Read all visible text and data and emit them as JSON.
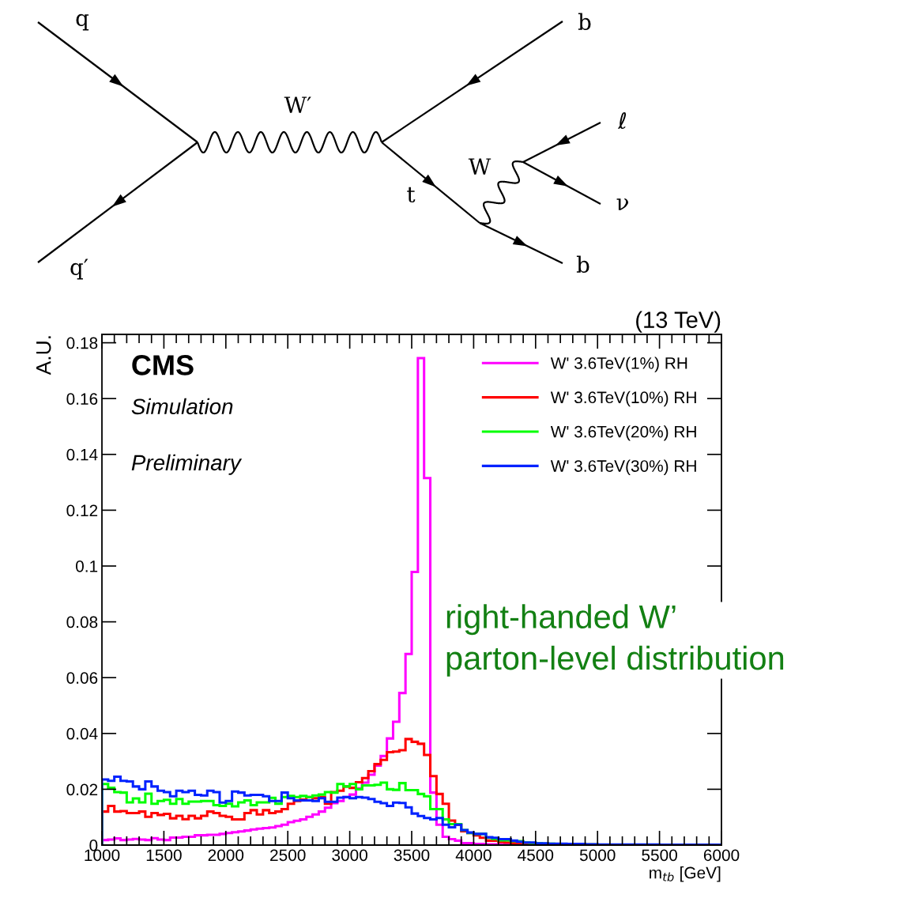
{
  "chart_data": {
    "type": "histogram",
    "title": "(13 TeV)",
    "xlabel": "m$_{tb}$ [GeV]",
    "ylabel": "A.U.",
    "bins": [
      1000,
      1050,
      1100,
      1150,
      1200,
      1250,
      1300,
      1350,
      1400,
      1450,
      1500,
      1550,
      1600,
      1650,
      1700,
      1750,
      1800,
      1850,
      1900,
      1950,
      2000,
      2050,
      2100,
      2150,
      2200,
      2250,
      2300,
      2350,
      2400,
      2450,
      2500,
      2550,
      2600,
      2650,
      2700,
      2750,
      2800,
      2850,
      2900,
      2950,
      3000,
      3050,
      3100,
      3150,
      3200,
      3250,
      3300,
      3350,
      3400,
      3450,
      3500,
      3550,
      3600,
      3650,
      3700,
      3750,
      3800,
      3850,
      3900,
      3950,
      4000,
      4050,
      4100,
      4150,
      4200,
      4250,
      4300,
      4350,
      4400,
      4450,
      4500,
      4550,
      4600,
      4650,
      4700,
      4750,
      4800,
      4850,
      4900,
      4950,
      5000,
      5050,
      5100,
      5150,
      5200,
      5250,
      5300,
      5350,
      5400,
      5450,
      5500,
      5550,
      5600,
      5650,
      5700,
      5750,
      5800,
      5850,
      5900,
      5950,
      6000
    ],
    "series": [
      {
        "name": "W' 3.6TeV(1%) RH",
        "color": "#ff00ff",
        "values": [
          0.0018,
          0.002,
          0.0024,
          0.0018,
          0.002,
          0.0022,
          0.002,
          0.0018,
          0.0025,
          0.002,
          0.0018,
          0.0027,
          0.0027,
          0.003,
          0.003,
          0.0035,
          0.0035,
          0.0037,
          0.0037,
          0.004,
          0.0043,
          0.0046,
          0.0049,
          0.0052,
          0.0056,
          0.0059,
          0.0061,
          0.0063,
          0.0068,
          0.0073,
          0.0082,
          0.0087,
          0.0092,
          0.0101,
          0.011,
          0.012,
          0.0134,
          0.015,
          0.0158,
          0.0172,
          0.0181,
          0.0203,
          0.0224,
          0.0252,
          0.0285,
          0.0319,
          0.0382,
          0.0442,
          0.0545,
          0.0685,
          0.0979,
          0.1745,
          0.1315,
          0.0188,
          0.0073,
          0.003,
          0.0021,
          0.0016,
          0.0007,
          0.0007,
          0.0004,
          0.0004,
          0.0003,
          0.0003,
          0.0002,
          0.0002,
          0.0002,
          0.0002,
          0.0001,
          0.0001,
          0.0001,
          0.0001,
          0.0001,
          0.0001,
          0.0001,
          0.0001,
          0.0001,
          0.0001,
          0.0001,
          0.0001,
          0,
          0,
          0,
          0,
          0,
          0,
          0,
          0,
          0,
          0,
          0,
          0,
          0,
          0,
          0,
          0,
          0,
          0,
          0,
          0
        ]
      },
      {
        "name": "W' 3.6TeV(10%) RH",
        "color": "#ff0000",
        "values": [
          0.012,
          0.014,
          0.012,
          0.0122,
          0.0115,
          0.0115,
          0.012,
          0.0101,
          0.0115,
          0.0108,
          0.0112,
          0.0096,
          0.0105,
          0.0093,
          0.0105,
          0.0096,
          0.0105,
          0.012,
          0.0115,
          0.0105,
          0.0101,
          0.0092,
          0.0092,
          0.0115,
          0.0125,
          0.011,
          0.0125,
          0.0115,
          0.012,
          0.0129,
          0.0148,
          0.0158,
          0.0163,
          0.0172,
          0.0168,
          0.0172,
          0.0148,
          0.019,
          0.0195,
          0.021,
          0.0205,
          0.0225,
          0.024,
          0.0265,
          0.029,
          0.0305,
          0.0333,
          0.0335,
          0.034,
          0.038,
          0.037,
          0.0363,
          0.0323,
          0.0247,
          0.0183,
          0.0148,
          0.0088,
          0.0073,
          0.005,
          0.0043,
          0.0035,
          0.0026,
          0.0016,
          0.0016,
          0.0011,
          0.0009,
          0.0007,
          0.0007,
          0.0006,
          0.0005,
          0.0004,
          0.0004,
          0.0003,
          0.0003,
          0.0003,
          0.0002,
          0.0002,
          0.0002,
          0.0002,
          0.0002,
          0.0001,
          0.0001,
          0.0001,
          0.0001,
          0.0001,
          0.0001,
          0.0001,
          0.0001,
          0.0001,
          0.0001,
          0.0001,
          0.0001,
          0.0001,
          0.0001,
          0.0001,
          0.0001,
          0.0001,
          0.0001,
          0.0001,
          0.0001
        ]
      },
      {
        "name": "W' 3.6TeV(20%) RH",
        "color": "#00ff00",
        "values": [
          0.0219,
          0.0205,
          0.019,
          0.0188,
          0.0153,
          0.0167,
          0.0153,
          0.0184,
          0.0148,
          0.0158,
          0.0162,
          0.0148,
          0.0165,
          0.0148,
          0.0156,
          0.0156,
          0.0158,
          0.0158,
          0.0143,
          0.014,
          0.0148,
          0.0139,
          0.0153,
          0.016,
          0.0143,
          0.0153,
          0.0153,
          0.0169,
          0.0148,
          0.0172,
          0.0176,
          0.0172,
          0.0176,
          0.0172,
          0.0178,
          0.0181,
          0.019,
          0.0188,
          0.0219,
          0.021,
          0.0219,
          0.02,
          0.0214,
          0.0214,
          0.0216,
          0.0224,
          0.02,
          0.0198,
          0.0222,
          0.0197,
          0.0197,
          0.0183,
          0.0175,
          0.0129,
          0.0129,
          0.0092,
          0.0075,
          0.0075,
          0.0054,
          0.0043,
          0.004,
          0.004,
          0.0026,
          0.0022,
          0.0017,
          0.0017,
          0.0014,
          0.0014,
          0.0009,
          0.0008,
          0.0006,
          0.0005,
          0.0005,
          0.0004,
          0.0004,
          0.0003,
          0.0003,
          0.0003,
          0.0002,
          0.0002,
          0.0001,
          0.0001,
          0.0001,
          0.0001,
          0.0001,
          0.0001,
          0.0001,
          0.0001,
          0.0001,
          0.0001,
          0.0001,
          0.0001,
          0.0001,
          0.0001,
          0.0001,
          0.0001,
          0.0001,
          0.0001,
          0.0001,
          0.0001
        ]
      },
      {
        "name": "W' 3.6TeV(30%) RH",
        "color": "#0022ff",
        "values": [
          0.0235,
          0.023,
          0.0245,
          0.023,
          0.0228,
          0.021,
          0.02,
          0.0228,
          0.021,
          0.0195,
          0.019,
          0.0175,
          0.0195,
          0.019,
          0.0195,
          0.018,
          0.0178,
          0.0195,
          0.019,
          0.0152,
          0.0158,
          0.0192,
          0.0188,
          0.0178,
          0.018,
          0.018,
          0.0175,
          0.0158,
          0.0158,
          0.0188,
          0.0168,
          0.016,
          0.016,
          0.016,
          0.0158,
          0.0168,
          0.0155,
          0.0155,
          0.017,
          0.0172,
          0.0168,
          0.0172,
          0.017,
          0.0165,
          0.0155,
          0.015,
          0.014,
          0.0152,
          0.0151,
          0.0135,
          0.0113,
          0.0104,
          0.0097,
          0.0092,
          0.0097,
          0.0073,
          0.0064,
          0.0073,
          0.0054,
          0.0045,
          0.004,
          0.004,
          0.0028,
          0.0026,
          0.0021,
          0.0021,
          0.0016,
          0.0012,
          0.0009,
          0.0009,
          0.0006,
          0.0006,
          0.0005,
          0.0005,
          0.0005,
          0.0004,
          0.0004,
          0.0004,
          0.0003,
          0.0003,
          0.0002,
          0.0002,
          0.0002,
          0.0002,
          0.0002,
          0.0002,
          0.0002,
          0.0002,
          0.0002,
          0.0002,
          0.0001,
          0.0001,
          0.0001,
          0.0001,
          0.0001,
          0.0001,
          0.0001,
          0.0001,
          0.0001,
          0.0001
        ]
      }
    ],
    "xlim": [
      1000,
      6000
    ],
    "ylim": [
      0,
      0.183
    ],
    "xticks": [
      1000,
      1500,
      2000,
      2500,
      3000,
      3500,
      4000,
      4500,
      5000,
      5500,
      6000
    ],
    "yticks": [
      0,
      0.02,
      0.04,
      0.06,
      0.08,
      0.1,
      0.12,
      0.14,
      0.16,
      0.18
    ],
    "legend": "top right",
    "grid": false,
    "annotations": [
      "CMS",
      "Simulation",
      "Preliminary",
      "right-handed W’\nparton-level distribution",
      "q",
      "q′",
      "W′",
      "b",
      "t",
      "W",
      "ℓ",
      "ν",
      "b"
    ]
  }
}
